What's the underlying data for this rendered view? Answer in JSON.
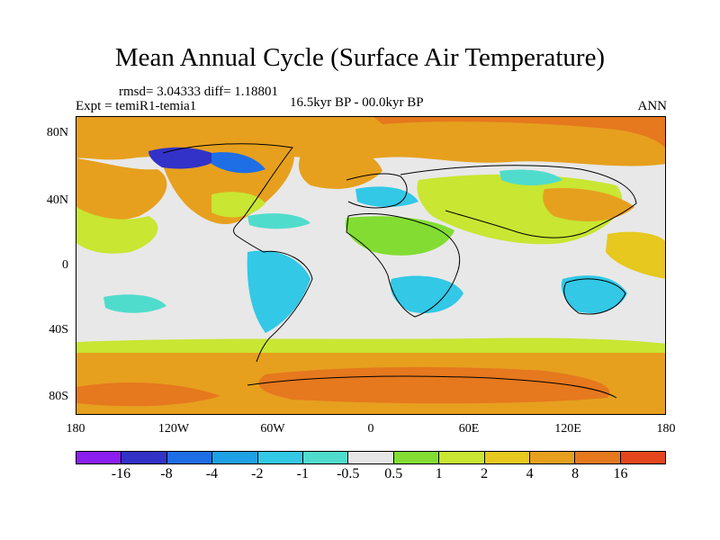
{
  "title": "Mean Annual Cycle (Surface Air Temperature)",
  "stats": "rmsd= 3.04333 diff= 1.18801",
  "experiment": "Expt = temiR1-temia1",
  "period": "16.5kyr BP - 00.0kyr BP",
  "season": "ANN",
  "map": {
    "lat_labels": [
      "80N",
      "40N",
      "0",
      "40S",
      "80S"
    ],
    "lon_labels": [
      "180",
      "120W",
      "60W",
      "0",
      "60E",
      "120E",
      "180"
    ]
  },
  "colorbar": {
    "colors": [
      "#8b1ef0",
      "#3232c8",
      "#1e6ee6",
      "#1ea0e6",
      "#32c8e6",
      "#50dccc",
      "#e6e6e6",
      "#82dc32",
      "#c8e632",
      "#e6c81e",
      "#e6a01e",
      "#e6781e",
      "#e6461e"
    ],
    "labels": [
      "-16",
      "-8",
      "-4",
      "-2",
      "-1",
      "-0.5",
      "0.5",
      "1",
      "2",
      "4",
      "8",
      "16"
    ]
  }
}
